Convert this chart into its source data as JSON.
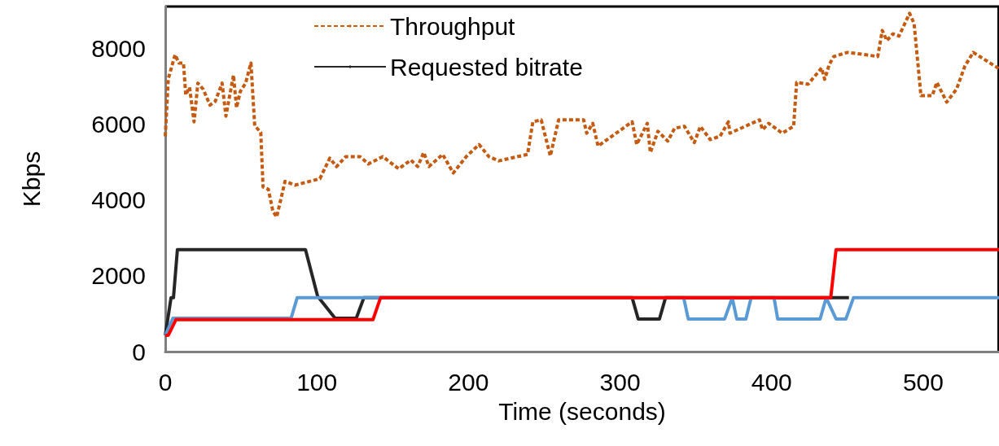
{
  "chart_data": {
    "type": "line",
    "xlabel": "Time (seconds)",
    "ylabel": "Kbps",
    "xlim": [
      0,
      550
    ],
    "xticks": [
      0,
      100,
      200,
      300,
      400,
      500
    ],
    "ylim": [
      0,
      9100
    ],
    "yticks": [
      0,
      2000,
      4000,
      6000,
      8000
    ],
    "grid": false,
    "legend": "top",
    "marker": "none",
    "series": [
      {
        "name": "Throughput",
        "color": "#c55a11",
        "line_style": "dashed",
        "x": [
          0,
          2,
          6.5,
          9,
          12,
          13.5,
          16,
          19,
          21.5,
          25,
          29.5,
          33,
          37.5,
          40,
          45,
          47,
          49.5,
          53,
          56.5,
          59,
          63,
          64.5,
          68,
          71,
          73.5,
          79,
          85.5,
          102,
          108.5,
          113,
          119,
          128.5,
          134,
          143.5,
          154,
          162,
          166.5,
          170.5,
          174,
          183,
          190,
          198.5,
          207,
          213.5,
          220,
          239,
          242.5,
          248,
          254,
          259.5,
          269,
          276,
          278,
          282,
          285.5,
          308,
          311,
          318,
          320,
          325,
          331.5,
          336,
          342.5,
          349,
          353,
          359.5,
          366,
          371.5,
          372.5,
          392,
          394,
          398,
          407,
          414.5,
          416.5,
          424,
          433,
          435,
          438,
          441,
          450,
          462,
          470,
          473,
          476,
          480,
          484,
          491,
          494,
          498.5,
          506,
          509,
          515.5,
          522,
          527.5,
          533,
          550
        ],
        "values": [
          5680,
          7200,
          7830,
          7610,
          7610,
          6770,
          6970,
          6060,
          7080,
          6920,
          6500,
          6600,
          7080,
          6210,
          7290,
          6430,
          6860,
          7080,
          7610,
          5960,
          5780,
          4340,
          4280,
          3700,
          3550,
          4490,
          4390,
          4560,
          5100,
          4880,
          5140,
          5140,
          4950,
          5140,
          4820,
          5050,
          4880,
          5250,
          4880,
          5200,
          4710,
          5140,
          5460,
          5140,
          5030,
          5200,
          6060,
          6110,
          5160,
          6110,
          6110,
          6110,
          5760,
          6020,
          5420,
          6060,
          5460,
          6020,
          5250,
          5810,
          5550,
          5890,
          5940,
          5510,
          5940,
          5590,
          5680,
          6060,
          5760,
          6110,
          5850,
          6020,
          5760,
          5940,
          7100,
          7050,
          7480,
          7180,
          7570,
          7780,
          7890,
          7830,
          7780,
          8470,
          8200,
          8380,
          8320,
          8920,
          8650,
          6750,
          6750,
          7100,
          6580,
          6920,
          7530,
          7890,
          7460
        ]
      },
      {
        "name": "Requested bitrate",
        "color": "#262626",
        "line_style": "solid",
        "x": [
          0,
          3.8,
          5.4,
          8,
          92.5,
          100.5,
          112,
          126,
          131,
          308,
          312,
          326,
          330,
          451
        ],
        "values": [
          430,
          1420,
          1420,
          2690,
          2690,
          1460,
          880,
          880,
          1420,
          1420,
          860,
          860,
          1420,
          1420
        ]
      },
      {
        "color": "#5b9bd5",
        "line_style": "solid",
        "x": [
          0,
          5,
          83,
          87,
          342,
          345,
          369,
          374,
          377,
          383,
          386.5,
          401.6,
          404,
          432,
          436,
          442.5,
          449,
          454,
          550
        ],
        "values": [
          430,
          880,
          880,
          1420,
          1420,
          860,
          860,
          1420,
          860,
          860,
          1420,
          1420,
          860,
          860,
          1420,
          860,
          860,
          1420,
          1420
        ]
      },
      {
        "color": "#ff0000",
        "line_style": "solid",
        "x": [
          0,
          2,
          7,
          137,
          142,
          439,
          442.5,
          550
        ],
        "values": [
          430,
          430,
          840,
          840,
          1420,
          1420,
          2690,
          2690
        ]
      }
    ]
  }
}
